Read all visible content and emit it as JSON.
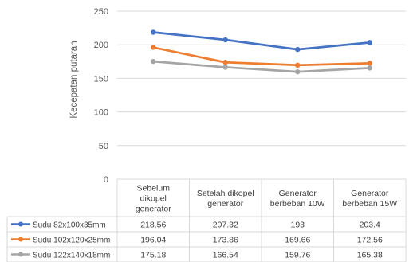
{
  "chart_data": {
    "type": "line",
    "title": "",
    "xlabel": "",
    "ylabel": "Kecepatan putaran",
    "ylim": [
      0,
      250
    ],
    "yticks": [
      0,
      50,
      100,
      150,
      200,
      250
    ],
    "grid": true,
    "legend": "data-table-left",
    "categories": [
      [
        "Sebelum",
        "dikopel",
        "generator"
      ],
      [
        "Setelah dikopel",
        "generator"
      ],
      [
        "Generator",
        "berbeban 10W"
      ],
      [
        "Generator",
        "berbeban 15W"
      ]
    ],
    "series": [
      {
        "name": "Sudu 82x100x35mm",
        "color": "#4472c4",
        "values": [
          218.56,
          207.32,
          193,
          203.4
        ],
        "labels": [
          "218.56",
          "207.32",
          "193",
          "203.4"
        ]
      },
      {
        "name": "Sudu 102x120x25mm",
        "color": "#ed7d31",
        "values": [
          196.04,
          173.86,
          169.66,
          172.56
        ],
        "labels": [
          "196.04",
          "173.86",
          "169.66",
          "172.56"
        ]
      },
      {
        "name": "Sudu 122x140x18mm",
        "color": "#a5a5a5",
        "values": [
          175.18,
          166.54,
          159.76,
          165.38
        ],
        "labels": [
          "175.18",
          "166.54",
          "159.76",
          "165.38"
        ]
      }
    ]
  }
}
